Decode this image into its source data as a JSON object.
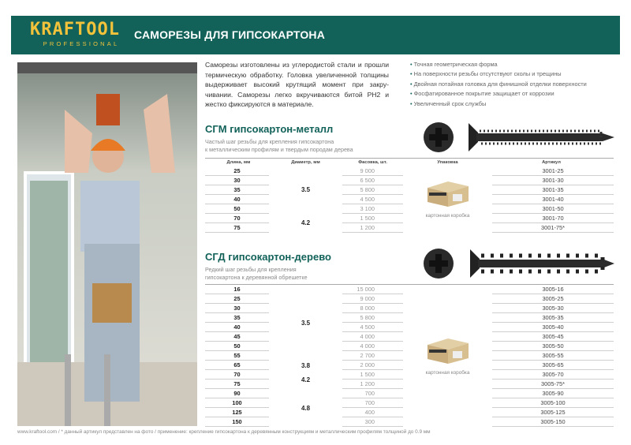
{
  "header": {
    "brand": "KRAFTOOL",
    "brand_sub": "PROFESSIONAL",
    "title": "САМОРЕЗЫ ДЛЯ ГИПСОКАРТОНА",
    "color": "#12625a",
    "logo_color": "#f2c33a"
  },
  "intro": "Саморезы изготовлены из углеродистой стали и прошли термическую обработку. Головка увеличенной толщины выдерживает высокий крутящий момент при закру­чивании. Саморезы легко вкручиваются битой PH2 и жестко фиксируются в материале.",
  "features": [
    "Точная геометрическая форма",
    "На поверхности резьбы отсутствуют сколы и трещины",
    "Двойная потайная головка для финишной отделки поверхности",
    "Фосфатированное покрытие защищает от коррозии",
    "Увеличенный срок службы"
  ],
  "columns": [
    "Длина, мм",
    "Диаметр, мм",
    "Фасовка, шт.",
    "Упаковка",
    "Артикул"
  ],
  "sgm": {
    "title": "СГМ гипсокартон-металл",
    "desc1": "Частый шаг резьбы для крепления гипсокартона",
    "desc2": "к металлическим профилям и твердым породам дерева",
    "package": "картонная коробка",
    "rows": [
      {
        "len": "25",
        "qty": "9 000",
        "art": "3001-25"
      },
      {
        "len": "30",
        "qty": "6 500",
        "art": "3001-30"
      },
      {
        "len": "35",
        "qty": "5 800",
        "art": "3001-35"
      },
      {
        "len": "40",
        "qty": "4 500",
        "art": "3001-40"
      },
      {
        "len": "50",
        "qty": "3 100",
        "art": "3001-50"
      },
      {
        "len": "70",
        "qty": "1 500",
        "art": "3001-70"
      },
      {
        "len": "75",
        "qty": "1 200",
        "art": "3001-75*"
      }
    ],
    "diameters": [
      "3.5",
      "4.2"
    ]
  },
  "sgd": {
    "title": "СГД гипсокартон-дерево",
    "desc1": "Редкий шаг резьбы для крепления",
    "desc2": "гипсокартона к деревянной обрешетке",
    "package": "картонная коробка",
    "rows": [
      {
        "len": "16",
        "qty": "15 000",
        "art": "3005-16"
      },
      {
        "len": "25",
        "qty": "9 000",
        "art": "3005-25"
      },
      {
        "len": "30",
        "qty": "8 000",
        "art": "3005-30"
      },
      {
        "len": "35",
        "qty": "5 800",
        "art": "3005-35"
      },
      {
        "len": "40",
        "qty": "4 500",
        "art": "3005-40"
      },
      {
        "len": "45",
        "qty": "4 000",
        "art": "3005-45"
      },
      {
        "len": "50",
        "qty": "4 000",
        "art": "3005-50"
      },
      {
        "len": "55",
        "qty": "2 700",
        "art": "3005-55"
      },
      {
        "len": "65",
        "qty": "2 000",
        "art": "3005-65"
      },
      {
        "len": "70",
        "qty": "1 500",
        "art": "3005-70"
      },
      {
        "len": "75",
        "qty": "1 200",
        "art": "3005-75*"
      },
      {
        "len": "90",
        "qty": "700",
        "art": "3005-90"
      },
      {
        "len": "100",
        "qty": "700",
        "art": "3005-100"
      },
      {
        "len": "125",
        "qty": "400",
        "art": "3005-125"
      },
      {
        "len": "150",
        "qty": "300",
        "art": "3005-150"
      }
    ],
    "diameters": [
      "3.5",
      "3.8",
      "4.2",
      "4.8"
    ]
  },
  "footer": "www.kraftool.com  /  * данный артикул представлен на фото  /  применение: крепление гипсокартона к деревянным конструкциям и металлическим профилям толщиной до 0.9 мм"
}
